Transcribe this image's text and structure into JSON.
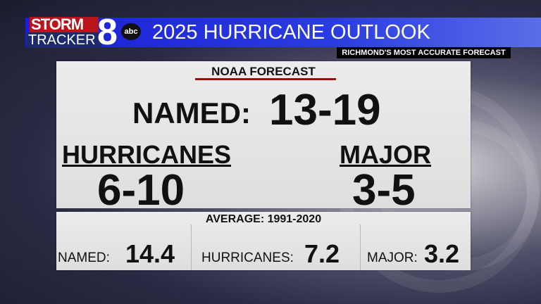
{
  "logo": {
    "line1": "STORM",
    "line2": "TRACKER",
    "number": "8",
    "network": "abc"
  },
  "header": {
    "title": "2025 HURRICANE OUTLOOK",
    "tagline": "RICHMOND'S MOST ACCURATE FORECAST"
  },
  "forecast": {
    "heading": "NOAA FORECAST",
    "named_label": "NAMED:",
    "named_value": "13-19",
    "hurricanes_label": "HURRICANES",
    "hurricanes_value": "6-10",
    "major_label": "MAJOR",
    "major_value": "3-5"
  },
  "average": {
    "heading": "AVERAGE: 1991-2020",
    "named_label": "NAMED:",
    "named_value": "14.4",
    "hurricanes_label": "HURRICANES:",
    "hurricanes_value": "7.2",
    "major_label": "MAJOR:",
    "major_value": "3.2"
  },
  "colors": {
    "header_blue": "#1a1fd6",
    "underline_red": "#a01010",
    "logo_red": "#b8141c"
  }
}
